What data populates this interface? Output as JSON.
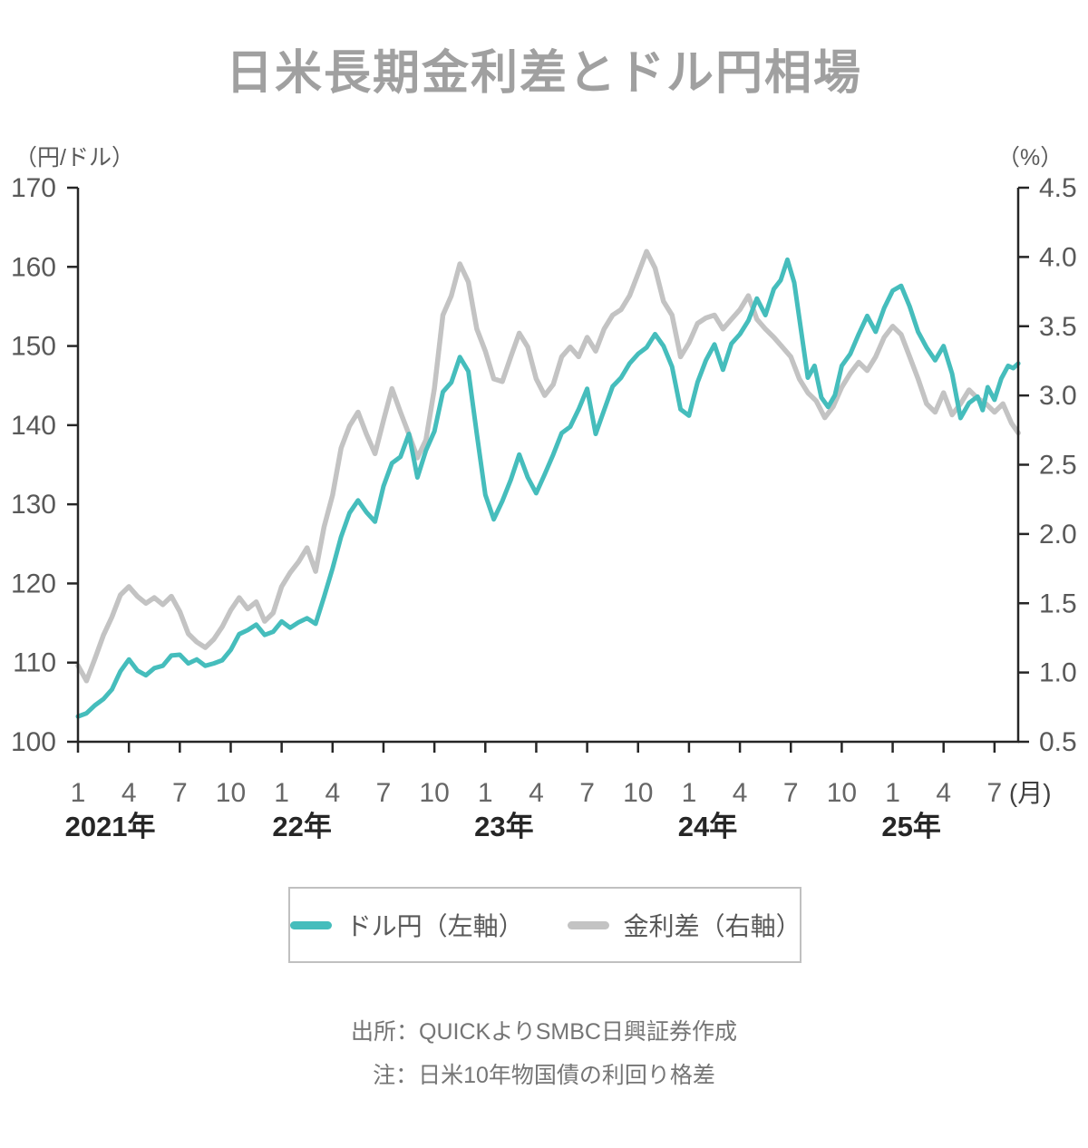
{
  "title": "日米長期金利差とドル円相場",
  "legend": {
    "items": [
      {
        "label": "ドル円（左軸）",
        "color": "#45BDBC"
      },
      {
        "label": "金利差（右軸）",
        "color": "#C3C3C3"
      }
    ]
  },
  "source": "出所：QUICKよりSMBC日興証券作成",
  "note": "注：日米10年物国債の利回り格差",
  "chart_data": {
    "type": "line",
    "title": "日米長期金利差とドル円相場",
    "grid": false,
    "legend_position": "bottom",
    "x_description": "Months from January 2021 (t=0) to August 2025 (t≈55.4)",
    "x_tick_labels": [
      "1",
      "4",
      "7",
      "10",
      "1",
      "4",
      "7",
      "10",
      "1",
      "4",
      "7",
      "10",
      "1",
      "4",
      "7",
      "10",
      "1",
      "4",
      "7"
    ],
    "x_tick_step_months": 3,
    "x_unit_label": "(月)",
    "years": [
      {
        "label": "2021年",
        "t": 1.9
      },
      {
        "label": "22年",
        "t": 13.2
      },
      {
        "label": "23年",
        "t": 25.1
      },
      {
        "label": "24年",
        "t": 37.1
      },
      {
        "label": "25年",
        "t": 49.1
      }
    ],
    "left_axis": {
      "unit": "（円/ドル）",
      "min": 100,
      "max": 170,
      "ticks": [
        170,
        160,
        150,
        140,
        130,
        120,
        110,
        100
      ]
    },
    "right_axis": {
      "unit": "（%）",
      "min": 0.5,
      "max": 4.5,
      "ticks": [
        4.5,
        4.0,
        3.5,
        3.0,
        2.5,
        2.0,
        1.5,
        1.0,
        0.5
      ]
    },
    "axis_color": "#262626",
    "tick_label_color": "#595959",
    "month_label_color": "#666666",
    "year_label_color": "#262626",
    "series": [
      {
        "name": "ドル円（左軸）",
        "axis": "left",
        "color": "#45BDBC",
        "stroke_width": 5,
        "points": [
          [
            0,
            103.2
          ],
          [
            0.5,
            103.6
          ],
          [
            1,
            104.6
          ],
          [
            1.5,
            105.4
          ],
          [
            2,
            106.6
          ],
          [
            2.5,
            108.9
          ],
          [
            3,
            110.4
          ],
          [
            3.5,
            109.0
          ],
          [
            4,
            108.4
          ],
          [
            4.5,
            109.3
          ],
          [
            5,
            109.6
          ],
          [
            5.5,
            110.9
          ],
          [
            6,
            111.0
          ],
          [
            6.5,
            109.9
          ],
          [
            7,
            110.4
          ],
          [
            7.5,
            109.6
          ],
          [
            8,
            109.9
          ],
          [
            8.5,
            110.3
          ],
          [
            9,
            111.6
          ],
          [
            9.5,
            113.6
          ],
          [
            10,
            114.1
          ],
          [
            10.5,
            114.8
          ],
          [
            11,
            113.5
          ],
          [
            11.5,
            113.9
          ],
          [
            12,
            115.2
          ],
          [
            12.5,
            114.4
          ],
          [
            13,
            115.1
          ],
          [
            13.5,
            115.6
          ],
          [
            14,
            114.9
          ],
          [
            14.5,
            118.3
          ],
          [
            15,
            121.9
          ],
          [
            15.5,
            125.9
          ],
          [
            16,
            128.9
          ],
          [
            16.5,
            130.5
          ],
          [
            17,
            129.0
          ],
          [
            17.5,
            127.8
          ],
          [
            18,
            132.3
          ],
          [
            18.5,
            135.2
          ],
          [
            19,
            136.0
          ],
          [
            19.5,
            138.9
          ],
          [
            20,
            133.4
          ],
          [
            20.5,
            136.8
          ],
          [
            21,
            139.2
          ],
          [
            21.5,
            144.2
          ],
          [
            22,
            145.4
          ],
          [
            22.5,
            148.6
          ],
          [
            23,
            146.8
          ],
          [
            23.5,
            138.9
          ],
          [
            24,
            131.2
          ],
          [
            24.5,
            128.1
          ],
          [
            25,
            130.4
          ],
          [
            25.5,
            133.1
          ],
          [
            26,
            136.3
          ],
          [
            26.5,
            133.4
          ],
          [
            27,
            131.4
          ],
          [
            27.5,
            133.8
          ],
          [
            28,
            136.3
          ],
          [
            28.5,
            139.0
          ],
          [
            29,
            139.8
          ],
          [
            29.5,
            142.0
          ],
          [
            30,
            144.6
          ],
          [
            30.5,
            138.9
          ],
          [
            31,
            141.9
          ],
          [
            31.5,
            144.9
          ],
          [
            32,
            146.0
          ],
          [
            32.5,
            147.8
          ],
          [
            33,
            149.0
          ],
          [
            33.5,
            149.8
          ],
          [
            34,
            151.5
          ],
          [
            34.5,
            150.0
          ],
          [
            35,
            147.4
          ],
          [
            35.5,
            142.0
          ],
          [
            36,
            141.2
          ],
          [
            36.5,
            145.4
          ],
          [
            37,
            148.2
          ],
          [
            37.5,
            150.2
          ],
          [
            38,
            147.0
          ],
          [
            38.5,
            150.3
          ],
          [
            39,
            151.5
          ],
          [
            39.5,
            153.2
          ],
          [
            40,
            156.0
          ],
          [
            40.5,
            153.9
          ],
          [
            41,
            157.2
          ],
          [
            41.4,
            158.3
          ],
          [
            41.8,
            160.9
          ],
          [
            42.2,
            158.0
          ],
          [
            42.6,
            152.0
          ],
          [
            43,
            146.0
          ],
          [
            43.4,
            147.5
          ],
          [
            43.8,
            143.5
          ],
          [
            44.2,
            142.3
          ],
          [
            44.6,
            143.8
          ],
          [
            45,
            147.5
          ],
          [
            45.5,
            149.0
          ],
          [
            46,
            151.5
          ],
          [
            46.5,
            153.8
          ],
          [
            47,
            151.8
          ],
          [
            47.5,
            154.8
          ],
          [
            48,
            157.0
          ],
          [
            48.5,
            157.6
          ],
          [
            49,
            155.0
          ],
          [
            49.5,
            151.8
          ],
          [
            50,
            149.8
          ],
          [
            50.5,
            148.2
          ],
          [
            51,
            150.0
          ],
          [
            51.5,
            146.5
          ],
          [
            52,
            140.9
          ],
          [
            52.5,
            142.8
          ],
          [
            53,
            143.6
          ],
          [
            53.3,
            141.9
          ],
          [
            53.6,
            144.8
          ],
          [
            54,
            143.2
          ],
          [
            54.4,
            145.9
          ],
          [
            54.8,
            147.5
          ],
          [
            55.1,
            147.2
          ],
          [
            55.4,
            147.8
          ]
        ]
      },
      {
        "name": "金利差（右軸）",
        "axis": "right",
        "color": "#C3C3C3",
        "stroke_width": 5.5,
        "points": [
          [
            0,
            1.05
          ],
          [
            0.5,
            0.94
          ],
          [
            1,
            1.1
          ],
          [
            1.5,
            1.27
          ],
          [
            2,
            1.4
          ],
          [
            2.5,
            1.56
          ],
          [
            3,
            1.62
          ],
          [
            3.5,
            1.55
          ],
          [
            4,
            1.5
          ],
          [
            4.5,
            1.54
          ],
          [
            5,
            1.49
          ],
          [
            5.5,
            1.55
          ],
          [
            6,
            1.44
          ],
          [
            6.5,
            1.28
          ],
          [
            7,
            1.22
          ],
          [
            7.5,
            1.18
          ],
          [
            8,
            1.24
          ],
          [
            8.5,
            1.33
          ],
          [
            9,
            1.45
          ],
          [
            9.5,
            1.54
          ],
          [
            10,
            1.46
          ],
          [
            10.5,
            1.51
          ],
          [
            11,
            1.37
          ],
          [
            11.5,
            1.43
          ],
          [
            12,
            1.62
          ],
          [
            12.5,
            1.72
          ],
          [
            13,
            1.8
          ],
          [
            13.5,
            1.9
          ],
          [
            14,
            1.73
          ],
          [
            14.5,
            2.05
          ],
          [
            15,
            2.28
          ],
          [
            15.5,
            2.62
          ],
          [
            16,
            2.78
          ],
          [
            16.5,
            2.88
          ],
          [
            17,
            2.72
          ],
          [
            17.5,
            2.58
          ],
          [
            18,
            2.82
          ],
          [
            18.5,
            3.05
          ],
          [
            19,
            2.88
          ],
          [
            19.5,
            2.72
          ],
          [
            20,
            2.55
          ],
          [
            20.5,
            2.68
          ],
          [
            21,
            3.05
          ],
          [
            21.5,
            3.58
          ],
          [
            22,
            3.72
          ],
          [
            22.5,
            3.95
          ],
          [
            23,
            3.82
          ],
          [
            23.5,
            3.48
          ],
          [
            24,
            3.32
          ],
          [
            24.5,
            3.12
          ],
          [
            25,
            3.1
          ],
          [
            25.5,
            3.28
          ],
          [
            26,
            3.45
          ],
          [
            26.5,
            3.35
          ],
          [
            27,
            3.12
          ],
          [
            27.5,
            3.0
          ],
          [
            28,
            3.08
          ],
          [
            28.5,
            3.28
          ],
          [
            29,
            3.35
          ],
          [
            29.5,
            3.28
          ],
          [
            30,
            3.42
          ],
          [
            30.5,
            3.32
          ],
          [
            31,
            3.48
          ],
          [
            31.5,
            3.58
          ],
          [
            32,
            3.62
          ],
          [
            32.5,
            3.72
          ],
          [
            33,
            3.88
          ],
          [
            33.5,
            4.04
          ],
          [
            34,
            3.92
          ],
          [
            34.5,
            3.68
          ],
          [
            35,
            3.58
          ],
          [
            35.5,
            3.28
          ],
          [
            36,
            3.38
          ],
          [
            36.5,
            3.52
          ],
          [
            37,
            3.56
          ],
          [
            37.5,
            3.58
          ],
          [
            38,
            3.48
          ],
          [
            38.5,
            3.55
          ],
          [
            39,
            3.62
          ],
          [
            39.5,
            3.72
          ],
          [
            40,
            3.55
          ],
          [
            40.5,
            3.48
          ],
          [
            41,
            3.42
          ],
          [
            41.5,
            3.35
          ],
          [
            42,
            3.28
          ],
          [
            42.5,
            3.12
          ],
          [
            43,
            3.02
          ],
          [
            43.5,
            2.96
          ],
          [
            44,
            2.84
          ],
          [
            44.5,
            2.92
          ],
          [
            45,
            3.06
          ],
          [
            45.5,
            3.16
          ],
          [
            46,
            3.24
          ],
          [
            46.5,
            3.18
          ],
          [
            47,
            3.28
          ],
          [
            47.5,
            3.42
          ],
          [
            48,
            3.5
          ],
          [
            48.5,
            3.44
          ],
          [
            49,
            3.28
          ],
          [
            49.5,
            3.12
          ],
          [
            50,
            2.94
          ],
          [
            50.5,
            2.88
          ],
          [
            51,
            3.02
          ],
          [
            51.5,
            2.86
          ],
          [
            52,
            2.94
          ],
          [
            52.5,
            3.04
          ],
          [
            53,
            2.98
          ],
          [
            53.5,
            2.94
          ],
          [
            54,
            2.88
          ],
          [
            54.5,
            2.94
          ],
          [
            55,
            2.8
          ],
          [
            55.4,
            2.73
          ]
        ]
      }
    ]
  }
}
